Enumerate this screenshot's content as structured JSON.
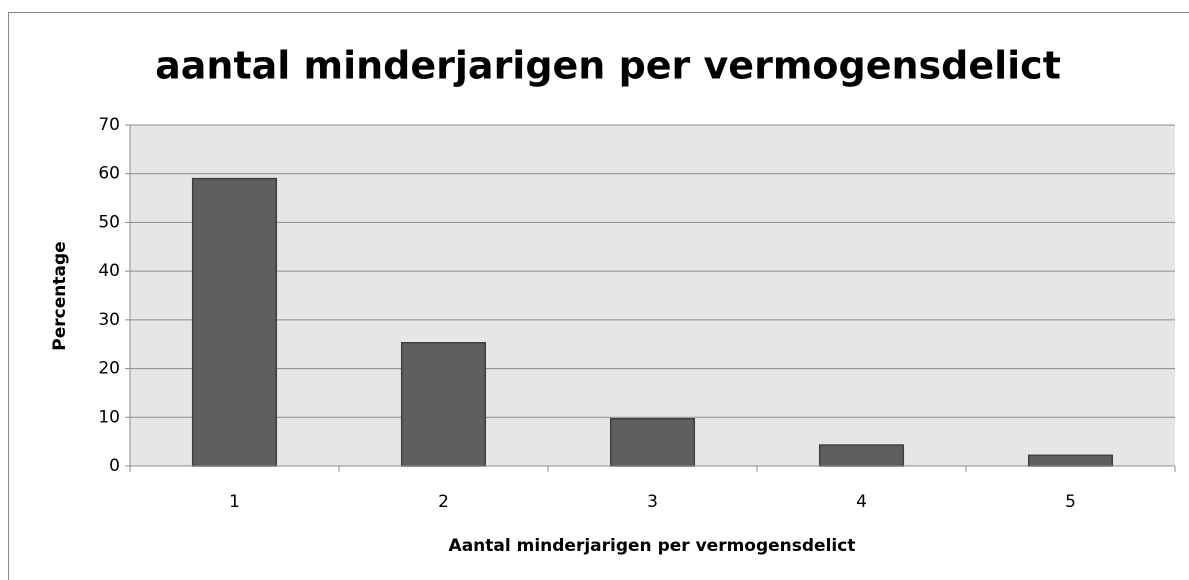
{
  "chart_data": {
    "type": "bar",
    "title": "aantal minderjarigen per vermogensdelict",
    "x_label": "Aantal minderjarigen per vermogensdelict",
    "y_label": "Percentage",
    "categories": [
      "1",
      "2",
      "3",
      "4",
      "5"
    ],
    "values": [
      59,
      25.3,
      9.7,
      4.3,
      2.2
    ],
    "color": "#5f5f5f",
    "ylim": [
      0,
      70
    ],
    "yticks": [
      0,
      10,
      20,
      30,
      40,
      50,
      60,
      70
    ],
    "grid": true
  }
}
